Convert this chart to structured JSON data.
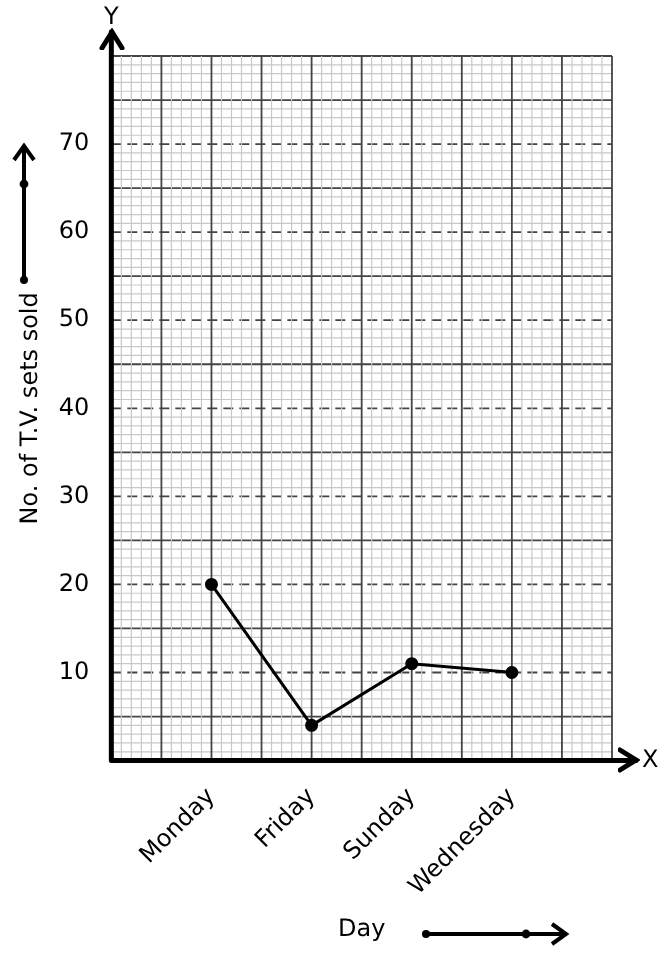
{
  "chart_data": {
    "type": "line",
    "xlabel": "Day",
    "ylabel": "No. of T.V. sets sold",
    "categories": [
      "Monday",
      "Friday",
      "Sunday",
      "Wednesday"
    ],
    "series": [
      {
        "color": "#000000",
        "values": [
          20,
          4,
          11,
          10
        ]
      }
    ],
    "ylim": [
      0,
      80
    ],
    "yticks": [
      10,
      20,
      30,
      40,
      50,
      60,
      70
    ],
    "grid": true,
    "legend": false,
    "marker": "circle",
    "line_style": "solid",
    "annotations": [
      "X",
      "Y"
    ]
  }
}
